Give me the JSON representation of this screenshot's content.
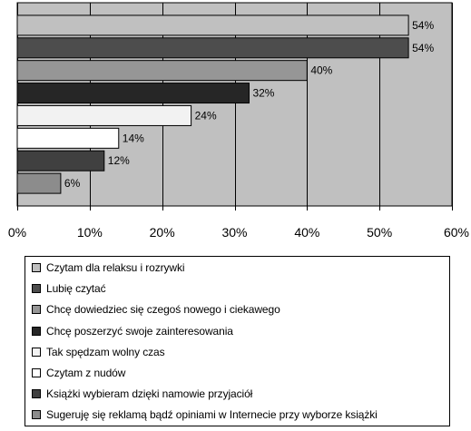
{
  "chart_data": {
    "type": "bar",
    "orientation": "horizontal",
    "categories": [
      "Czytam dla relaksu i rozrywki",
      "Lubię czytać",
      "Chcę dowiedziec się czegoś nowego i ciekawego",
      "Chcę poszerzyć swoje zainteresowania",
      "Tak spędzam wolny czas",
      "Czytam z nudów",
      "Książki wybieram dzięki namowie przyjaciół",
      "Sugeruję się reklamą bądź opiniami w Internecie przy wyborze książki"
    ],
    "values": [
      54,
      54,
      40,
      32,
      24,
      14,
      12,
      6
    ],
    "value_labels": [
      "54%",
      "54%",
      "40%",
      "32%",
      "24%",
      "14%",
      "12%",
      "6%"
    ],
    "colors": [
      "#c0c0c0",
      "#4d4d4d",
      "#969696",
      "#262626",
      "#f2f2f2",
      "#ffffff",
      "#404040",
      "#8c8c8c"
    ],
    "xlim": [
      0,
      60
    ],
    "x_ticks": [
      "0%",
      "10%",
      "20%",
      "30%",
      "40%",
      "50%",
      "60%"
    ],
    "plot_background": "#c0c0c0",
    "grid": true,
    "legend_position": "bottom",
    "title": "",
    "xlabel": "",
    "ylabel": ""
  }
}
